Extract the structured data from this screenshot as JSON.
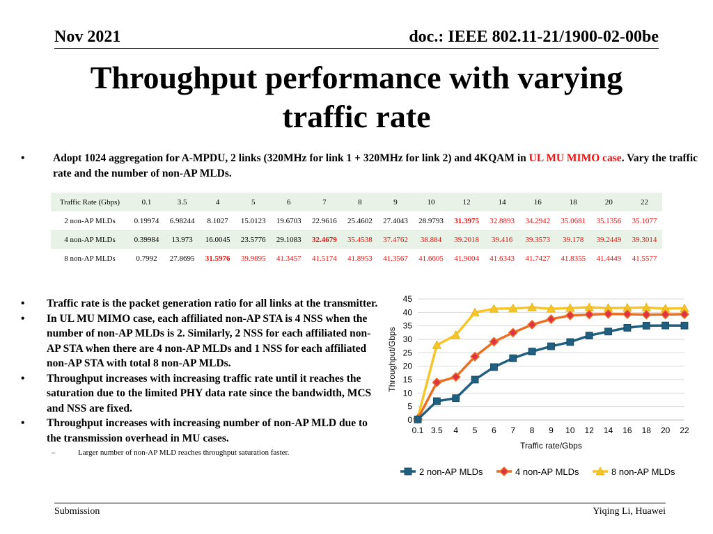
{
  "header": {
    "date": "Nov 2021",
    "doc": "doc.: IEEE 802.11-21/1900-02-00be"
  },
  "title": {
    "line1": "Throughput performance with varying",
    "line2": "traffic rate"
  },
  "intro": {
    "bullet": "•",
    "text_before": "Adopt 1024 aggregation for A-MPDU, 2 links (320MHz for link 1 + 320MHz for link 2) and 4KQAM in ",
    "highlight": "UL MU MIMO case",
    "text_after": ". Vary the traffic rate and the number of non-AP MLDs."
  },
  "table": {
    "header_label": "Traffic Rate (Gbps)",
    "rates": [
      "0.1",
      "3.5",
      "4",
      "5",
      "6",
      "7",
      "8",
      "9",
      "10",
      "12",
      "14",
      "16",
      "18",
      "20",
      "22"
    ],
    "rows": [
      {
        "label": "2 non-AP MLDs",
        "values": [
          "0.19974",
          "6.98244",
          "8.1027",
          "15.0123",
          "19.6703",
          "22.9616",
          "25.4602",
          "27.4043",
          "28.9793",
          "31.3975",
          "32.8893",
          "34.2942",
          "35.0681",
          "35.1356",
          "35.1077"
        ],
        "highlight_index": 9
      },
      {
        "label": "4 non-AP MLDs",
        "values": [
          "0.39984",
          "13.973",
          "16.0045",
          "23.5776",
          "29.1083",
          "32.4679",
          "35.4538",
          "37.4762",
          "38.884",
          "39.2018",
          "39.416",
          "39.3573",
          "39.178",
          "39.2449",
          "39.3014"
        ],
        "highlight_index": 5
      },
      {
        "label": "8 non-AP MLDs",
        "values": [
          "0.7992",
          "27.8695",
          "31.5976",
          "39.9895",
          "41.3457",
          "41.5174",
          "41.8953",
          "41.3567",
          "41.6605",
          "41.9004",
          "41.6343",
          "41.7427",
          "41.8355",
          "41.4449",
          "41.5577"
        ],
        "highlight_index": 2
      }
    ]
  },
  "bullets": [
    {
      "dot": "•",
      "text": "Traffic rate is the packet generation ratio for all links at the transmitter."
    },
    {
      "dot": "•",
      "text": "In UL MU MIMO case, each affiliated non-AP STA is 4 NSS when the number of non-AP MLDs is 2. Similarly, 2 NSS for each affiliated non-AP STA when there are 4 non-AP MLDs and 1 NSS for each affiliated non-AP STA with total 8 non-AP MLDs."
    },
    {
      "dot": "•",
      "text": "Throughput increases with increasing traffic rate until it reaches the saturation due to the limited PHY data rate since the bandwidth, MCS and NSS are fixed."
    },
    {
      "dot": "•",
      "text": "Throughput increases with increasing number of non-AP MLD due to the transmission overhead in MU cases."
    }
  ],
  "sub_bullet": {
    "dash": "–",
    "text": "Larger number of non-AP MLD reaches throughput saturation faster."
  },
  "chart_data": {
    "type": "line",
    "title": "",
    "xlabel": "Traffic rate/Gbps",
    "ylabel": "Throughput/Gbps",
    "categories": [
      "0.1",
      "3.5",
      "4",
      "5",
      "6",
      "7",
      "8",
      "9",
      "10",
      "12",
      "14",
      "16",
      "18",
      "20",
      "22"
    ],
    "ylim": [
      0,
      45
    ],
    "yticks": [
      0,
      5,
      10,
      15,
      20,
      25,
      30,
      35,
      40,
      45
    ],
    "grid": true,
    "legend": "bottom",
    "series": [
      {
        "name": "2 non-AP MLDs",
        "color": "#1f5f7f",
        "marker": "square",
        "values": [
          0.19974,
          6.98244,
          8.1027,
          15.0123,
          19.6703,
          22.9616,
          25.4602,
          27.4043,
          28.9793,
          31.3975,
          32.8893,
          34.2942,
          35.0681,
          35.1356,
          35.1077
        ]
      },
      {
        "name": "4 non-AP MLDs",
        "color": "#ec7022",
        "marker": "diamond",
        "values": [
          0.39984,
          13.973,
          16.0045,
          23.5776,
          29.1083,
          32.4679,
          35.4538,
          37.4762,
          38.884,
          39.2018,
          39.416,
          39.3573,
          39.178,
          39.2449,
          39.3014
        ]
      },
      {
        "name": "8 non-AP MLDs",
        "color": "#f5c52a",
        "marker": "triangle",
        "values": [
          0.7992,
          27.8695,
          31.5976,
          39.9895,
          41.3457,
          41.5174,
          41.8953,
          41.3567,
          41.6605,
          41.9004,
          41.6343,
          41.7427,
          41.8355,
          41.4449,
          41.5577
        ]
      }
    ]
  },
  "footer": {
    "left": "Submission",
    "right": "Yiqing Li, Huawei"
  }
}
